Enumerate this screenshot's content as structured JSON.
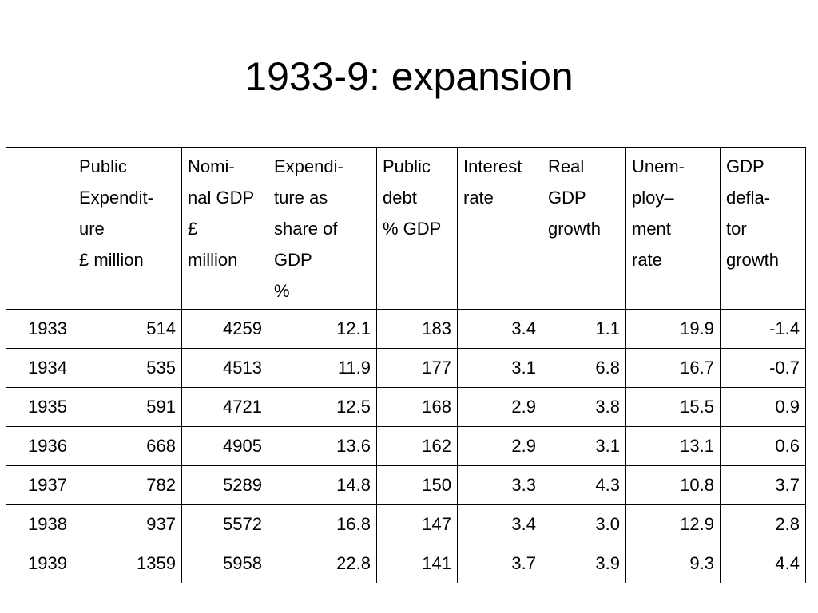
{
  "slide": {
    "title": "1933-9: expansion"
  },
  "table": {
    "headers": [
      [],
      [
        "Public",
        "Expendit-",
        "ure",
        "£ million"
      ],
      [
        "Nomi-",
        "nal GDP",
        "£",
        "million"
      ],
      [
        "Expendi-",
        "ture as",
        "share of",
        "GDP",
        "%"
      ],
      [
        "Public",
        "debt",
        "% GDP"
      ],
      [
        "Interest",
        "rate"
      ],
      [
        "Real",
        "GDP",
        "growth"
      ],
      [
        "Unem-",
        "ploy–",
        "ment",
        "rate"
      ],
      [
        "GDP",
        "defla-",
        "tor",
        "growth"
      ]
    ],
    "rows": [
      [
        "1933",
        "514",
        "4259",
        "12.1",
        "183",
        "3.4",
        "1.1",
        "19.9",
        "-1.4"
      ],
      [
        "1934",
        "535",
        "4513",
        "11.9",
        "177",
        "3.1",
        "6.8",
        "16.7",
        "-0.7"
      ],
      [
        "1935",
        "591",
        "4721",
        "12.5",
        "168",
        "2.9",
        "3.8",
        "15.5",
        "0.9"
      ],
      [
        "1936",
        "668",
        "4905",
        "13.6",
        "162",
        "2.9",
        "3.1",
        "13.1",
        "0.6"
      ],
      [
        "1937",
        "782",
        "5289",
        "14.8",
        "150",
        "3.3",
        "4.3",
        "10.8",
        "3.7"
      ],
      [
        "1938",
        "937",
        "5572",
        "16.8",
        "147",
        "3.4",
        "3.0",
        "12.9",
        "2.8"
      ],
      [
        "1939",
        "1359",
        "5958",
        "22.8",
        "141",
        "3.7",
        "3.9",
        "9.3",
        "4.4"
      ]
    ]
  }
}
